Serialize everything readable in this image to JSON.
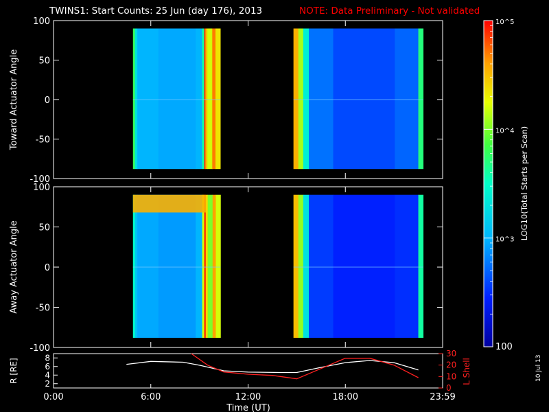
{
  "header": {
    "title": "TWINS1: Start Counts: 25 Jun (day 176), 2013",
    "note": "NOTE: Data Preliminary - Not validated"
  },
  "stamp": "10 Jul 13",
  "colors": {
    "background": "#000000",
    "axes": "#ffffff",
    "note": "#ff0000",
    "r_line": "#ffffff",
    "lshell_line": "#ff2020"
  },
  "colorbar": {
    "label": "LOG10(Total Starts per Scan)",
    "ticks": [
      "100",
      "10^3",
      "10^4",
      "10^5"
    ],
    "range_log": [
      2,
      5
    ],
    "colormap": "rainbow (dark blue → cyan → green → yellow → red)"
  },
  "x_axis": {
    "label": "Time (UT)",
    "ticks": [
      "0:00",
      "6:00",
      "12:00",
      "18:00",
      "23:59"
    ],
    "tick_hours": [
      0,
      6,
      12,
      18,
      24
    ],
    "range_hours": [
      0,
      24
    ]
  },
  "chart_data": [
    {
      "type": "heatmap",
      "panel": "toward",
      "ylabel": "Toward Actuator Angle",
      "ylim": [
        -100,
        100
      ],
      "yticks": [
        "100",
        "50",
        "0",
        "-50",
        "-100"
      ],
      "yticks_values": [
        100,
        50,
        0,
        -50,
        -100
      ],
      "angle_range": [
        -88,
        90
      ],
      "intervals_hours": [
        [
          4.9,
          10.3
        ],
        [
          14.8,
          22.8
        ]
      ],
      "columns": [
        {
          "t": 4.9,
          "dt": 0.12,
          "log": 3.8
        },
        {
          "t": 5.02,
          "dt": 0.15,
          "log": 3.3
        },
        {
          "t": 5.17,
          "dt": 1.3,
          "log": 3.0
        },
        {
          "t": 6.47,
          "dt": 2.3,
          "log": 2.95
        },
        {
          "t": 8.77,
          "dt": 0.4,
          "log": 3.0
        },
        {
          "t": 9.17,
          "dt": 0.12,
          "log": 3.6
        },
        {
          "t": 9.29,
          "dt": 0.08,
          "log": 4.9
        },
        {
          "t": 9.37,
          "dt": 0.12,
          "log": 4.5
        },
        {
          "t": 9.49,
          "dt": 0.3,
          "log": 4.2
        },
        {
          "t": 9.79,
          "dt": 0.2,
          "log": 4.7
        },
        {
          "t": 9.99,
          "dt": 0.3,
          "log": 4.35
        },
        {
          "t": 14.8,
          "dt": 0.3,
          "log": 4.55
        },
        {
          "t": 15.1,
          "dt": 0.3,
          "log": 4.1
        },
        {
          "t": 15.4,
          "dt": 0.35,
          "log": 3.4
        },
        {
          "t": 15.75,
          "dt": 1.5,
          "log": 2.75
        },
        {
          "t": 17.25,
          "dt": 3.8,
          "log": 2.6
        },
        {
          "t": 21.05,
          "dt": 1.45,
          "log": 2.7
        },
        {
          "t": 22.5,
          "dt": 0.3,
          "log": 3.7
        }
      ]
    },
    {
      "type": "heatmap",
      "panel": "away",
      "ylabel": "Away Actuator Angle",
      "ylim": [
        -100,
        100
      ],
      "yticks": [
        "100",
        "50",
        "0",
        "-50",
        "-100"
      ],
      "yticks_values": [
        100,
        50,
        0,
        -50,
        -100
      ],
      "angle_range": [
        -88,
        90
      ],
      "intervals_hours": [
        [
          4.9,
          10.3
        ],
        [
          14.8,
          22.8
        ]
      ],
      "top_band": {
        "angle_range": [
          68,
          90
        ],
        "hours": [
          4.9,
          9.4
        ],
        "log": 4.55
      },
      "columns": [
        {
          "t": 4.9,
          "dt": 0.12,
          "log": 3.5
        },
        {
          "t": 5.02,
          "dt": 0.15,
          "log": 3.1
        },
        {
          "t": 5.17,
          "dt": 1.3,
          "log": 2.95
        },
        {
          "t": 6.47,
          "dt": 2.3,
          "log": 2.9
        },
        {
          "t": 8.77,
          "dt": 0.4,
          "log": 3.0
        },
        {
          "t": 9.17,
          "dt": 0.12,
          "log": 4.2
        },
        {
          "t": 9.29,
          "dt": 0.1,
          "log": 4.9
        },
        {
          "t": 9.39,
          "dt": 0.12,
          "log": 4.4
        },
        {
          "t": 9.51,
          "dt": 0.3,
          "log": 4.0
        },
        {
          "t": 9.81,
          "dt": 0.2,
          "log": 4.6
        },
        {
          "t": 10.01,
          "dt": 0.29,
          "log": 4.2
        },
        {
          "t": 14.8,
          "dt": 0.3,
          "log": 4.5
        },
        {
          "t": 15.1,
          "dt": 0.3,
          "log": 4.05
        },
        {
          "t": 15.4,
          "dt": 0.35,
          "log": 3.3
        },
        {
          "t": 15.75,
          "dt": 1.5,
          "log": 2.55
        },
        {
          "t": 17.25,
          "dt": 3.8,
          "log": 2.45
        },
        {
          "t": 21.05,
          "dt": 1.45,
          "log": 2.5
        },
        {
          "t": 22.5,
          "dt": 0.3,
          "log": 3.6
        }
      ]
    },
    {
      "type": "line",
      "panel": "orbit",
      "ylabel": "R [RE]",
      "ylim": [
        1,
        9
      ],
      "yticks": [
        "8",
        "6",
        "4",
        "2"
      ],
      "yticks_values": [
        8,
        6,
        4,
        2
      ],
      "y2label": "L Shell",
      "y2lim": [
        0,
        30
      ],
      "y2ticks": [
        "30",
        "20",
        "10",
        "0"
      ],
      "y2ticks_values": [
        30,
        20,
        10,
        0
      ],
      "series": [
        {
          "key": "R",
          "axis": "left",
          "x": [
            4.5,
            6,
            8,
            9,
            10.5,
            12,
            14,
            15,
            16.5,
            18,
            19.5,
            21,
            22.5
          ],
          "y": [
            6.5,
            7.2,
            7.0,
            6.3,
            5.0,
            4.7,
            4.6,
            4.6,
            5.8,
            6.9,
            7.4,
            6.9,
            5.2
          ]
        },
        {
          "key": "L",
          "axis": "right",
          "x": [
            8.5,
            9.5,
            10.5,
            12,
            13.5,
            15,
            16.5,
            18,
            19.5,
            21,
            22.5
          ],
          "y": [
            30,
            20,
            14,
            12,
            11,
            8,
            17,
            26,
            26,
            20,
            9
          ]
        }
      ]
    }
  ]
}
